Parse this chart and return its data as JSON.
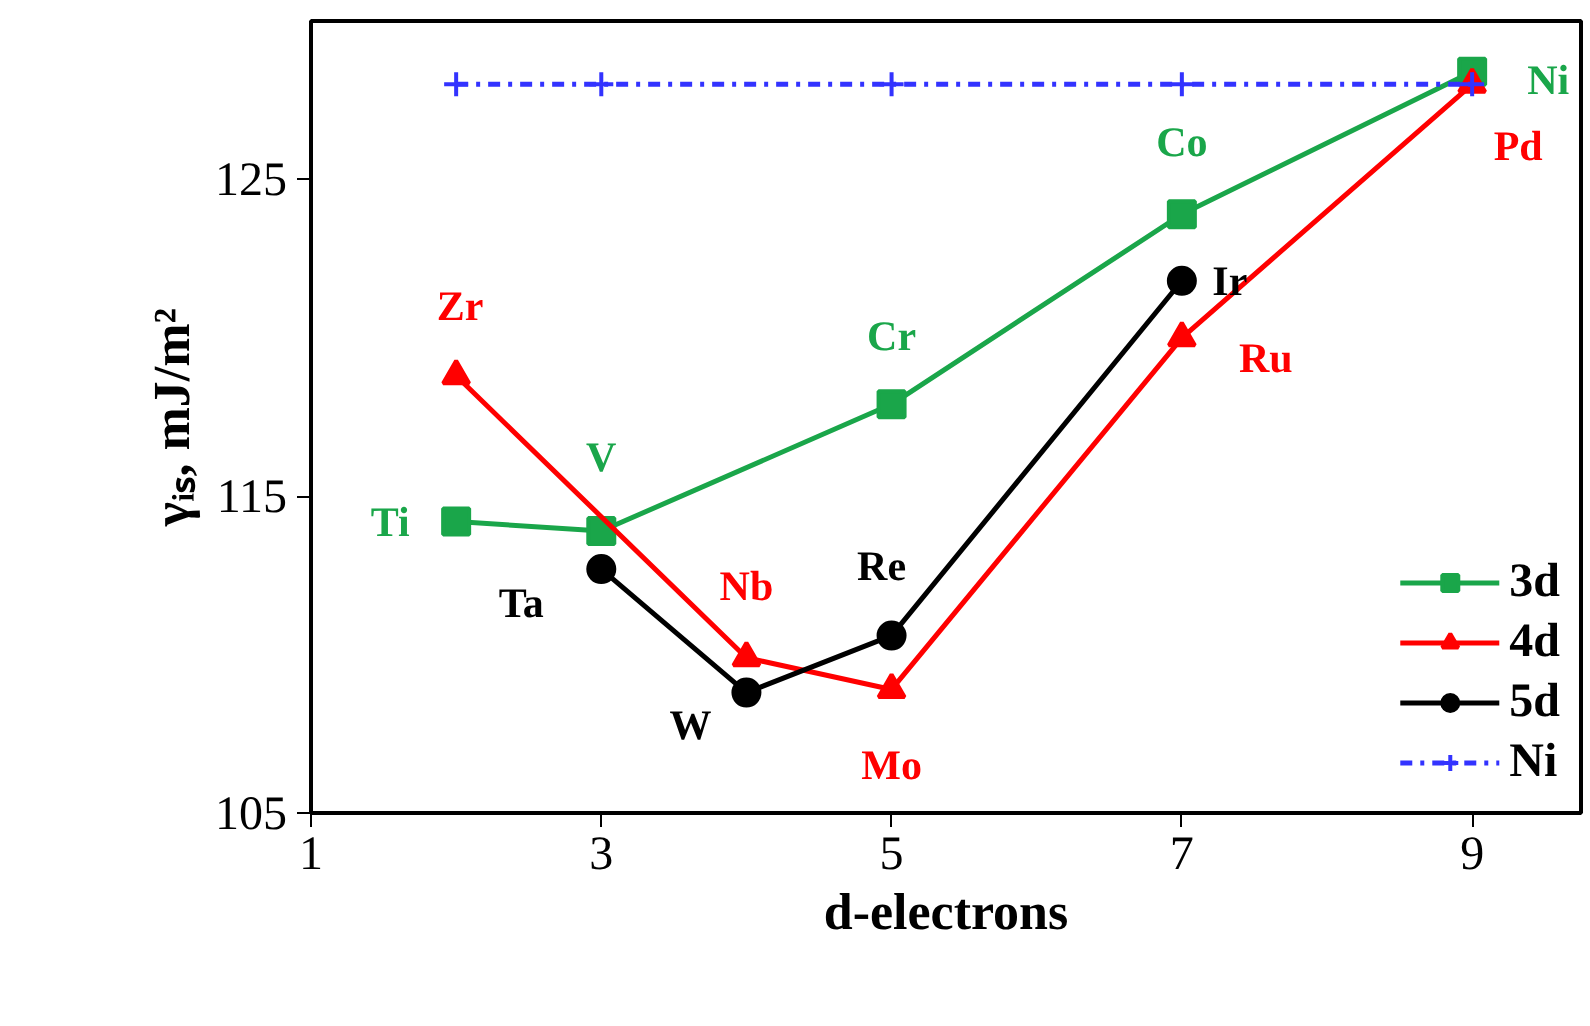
{
  "chart_data": {
    "type": "line",
    "xlabel": "d-electrons",
    "ylabel": "γᵢₛ, mJ/m²",
    "xlim": [
      1,
      9.75
    ],
    "ylim": [
      105,
      130
    ],
    "xticks": [
      1,
      3,
      5,
      7,
      9
    ],
    "yticks": [
      105,
      115,
      125
    ],
    "line_style": "solid",
    "grid": false,
    "legend": "bottom right",
    "series": [
      {
        "name": "3d",
        "color": "#1aa64a",
        "marker": "square",
        "x": [
          2,
          3,
          5,
          7,
          9
        ],
        "values": [
          114.2,
          113.9,
          117.9,
          123.9,
          128.4
        ],
        "value_labels": [
          "Ti",
          "V",
          "Cr",
          "Co",
          "Ni"
        ]
      },
      {
        "name": "4d",
        "color": "#ff0000",
        "marker": "triangle",
        "x": [
          2,
          4,
          5,
          7,
          9
        ],
        "values": [
          118.8,
          109.9,
          108.9,
          120.0,
          128.0
        ],
        "value_labels": [
          "Zr",
          "Nb",
          "Mo",
          "Ru",
          "Pd"
        ]
      },
      {
        "name": "5d",
        "color": "#000000",
        "marker": "circle",
        "x": [
          3,
          4,
          5,
          7
        ],
        "values": [
          112.7,
          108.8,
          110.6,
          121.8
        ],
        "value_labels": [
          "Ta",
          "W",
          "Re",
          "Ir"
        ]
      },
      {
        "name": "Ni",
        "color": "#3333ff",
        "marker": "cross",
        "line_style": "dashdot",
        "x": [
          2,
          3,
          5,
          7,
          9
        ],
        "values": [
          128.0,
          128.0,
          128.0,
          128.0,
          128.0
        ]
      }
    ]
  }
}
